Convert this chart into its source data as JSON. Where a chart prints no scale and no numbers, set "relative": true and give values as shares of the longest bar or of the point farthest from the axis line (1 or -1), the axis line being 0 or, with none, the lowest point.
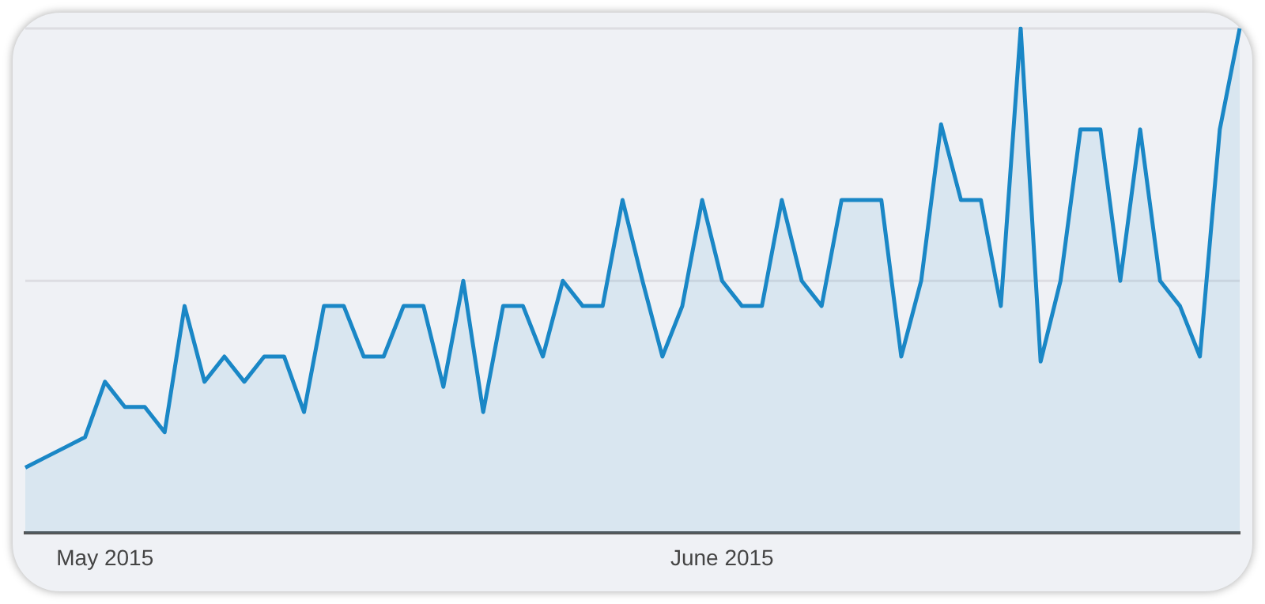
{
  "chart_data": {
    "type": "area",
    "relative": true,
    "marker": "none",
    "ref_lines": [
      {
        "axis": "y",
        "value": 0.5,
        "color": "#dddde2"
      },
      {
        "axis": "y",
        "value": 1,
        "color": "#dddde2"
      }
    ],
    "color": "#1a87c6",
    "categories": [
      null,
      null,
      null,
      null,
      "May 2015",
      null,
      null,
      null,
      null,
      null,
      null,
      null,
      null,
      null,
      null,
      null,
      null,
      null,
      null,
      null,
      null,
      null,
      null,
      null,
      null,
      null,
      null,
      null,
      null,
      null,
      null,
      null,
      null,
      null,
      null,
      "June 2015",
      null,
      null,
      null,
      null,
      null,
      null,
      null,
      null,
      null,
      null,
      null,
      null,
      null,
      null,
      null,
      null,
      null,
      null,
      null,
      null,
      null,
      null,
      null,
      null,
      null,
      null
    ],
    "values": [
      0.13,
      0.15,
      0.17,
      0.19,
      0.3,
      0.25,
      0.25,
      0.2,
      0.45,
      0.3,
      0.35,
      0.3,
      0.35,
      0.35,
      0.24,
      0.45,
      0.45,
      0.35,
      0.35,
      0.45,
      0.45,
      0.29,
      0.5,
      0.24,
      0.45,
      0.45,
      0.35,
      0.5,
      0.45,
      0.45,
      0.66,
      0.5,
      0.35,
      0.45,
      0.66,
      0.5,
      0.45,
      0.45,
      0.66,
      0.5,
      0.45,
      0.66,
      0.66,
      0.66,
      0.35,
      0.5,
      0.81,
      0.66,
      0.66,
      0.45,
      1.0,
      0.34,
      0.5,
      0.8,
      0.8,
      0.5,
      0.8,
      0.5,
      0.45,
      0.35,
      0.8,
      1.0
    ]
  }
}
